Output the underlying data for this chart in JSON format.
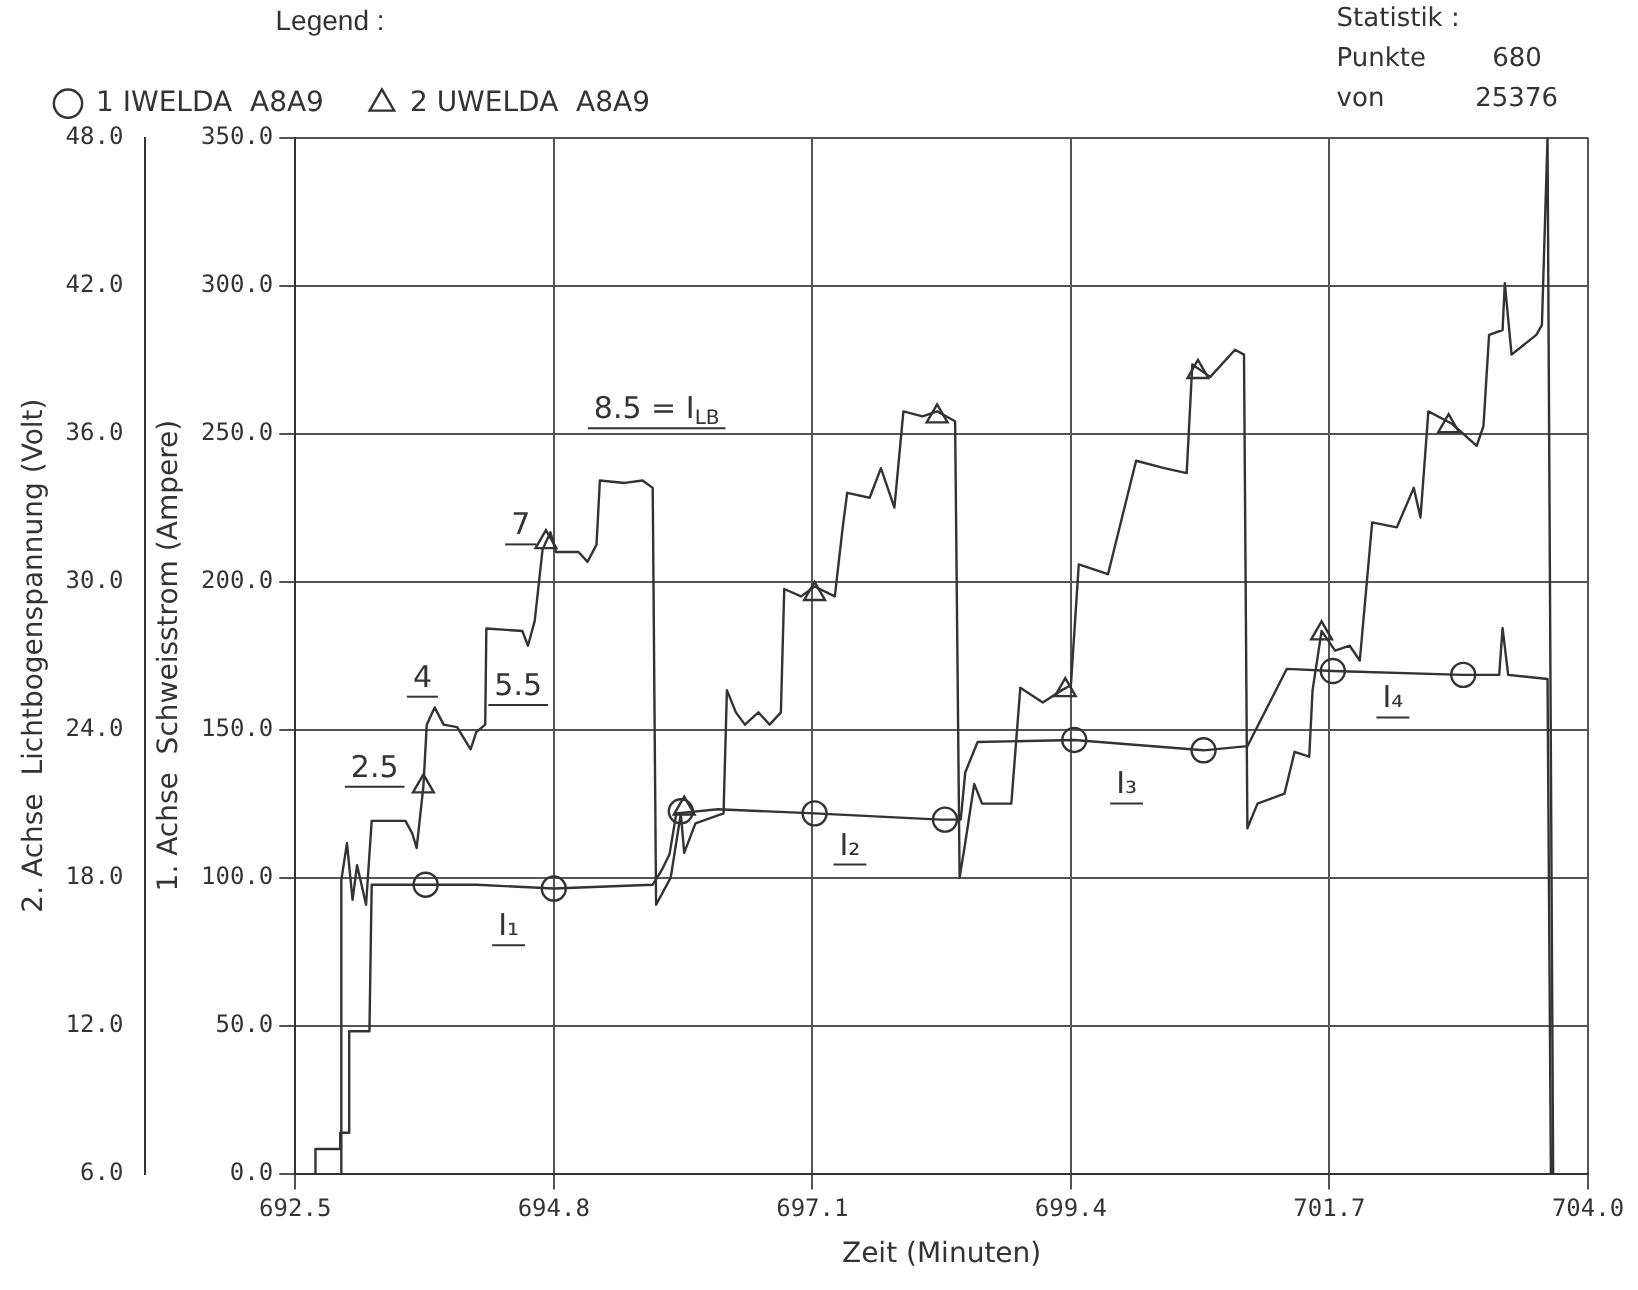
{
  "chart_data": {
    "type": "line",
    "xlabel": "Zeit (Minuten)",
    "ylabel": "1. Achse  Schweisstrom (Ampere)",
    "y2label": "2. Achse  Lichtbogenspannung (Volt)",
    "legend_title": "Legend :",
    "xlim": [
      692.5,
      704.0
    ],
    "xticks": [
      692.5,
      694.8,
      697.1,
      699.4,
      701.7,
      {
        "value": 704.0,
        "label": "704.0"
      }
    ],
    "ylim": [
      0,
      350
    ],
    "yticks": [
      {
        "value": 0,
        "label": "0.0"
      },
      {
        "value": 50,
        "label": "50.0"
      },
      {
        "value": 100,
        "label": "100.0"
      },
      {
        "value": 150,
        "label": "150.0"
      },
      {
        "value": 200,
        "label": "200.0"
      },
      {
        "value": 250,
        "label": "250.0"
      },
      {
        "value": 300,
        "label": "300.0"
      },
      {
        "value": 350,
        "label": "350.0"
      }
    ],
    "y2lim": [
      6,
      48
    ],
    "y2ticks": [
      {
        "value": 6,
        "label": "6.0"
      },
      {
        "value": 12,
        "label": "12.0"
      },
      {
        "value": 18,
        "label": "18.0"
      },
      {
        "value": 24,
        "label": "24.0"
      },
      {
        "value": 30,
        "label": "30.0"
      },
      {
        "value": 36,
        "label": "36.0"
      },
      {
        "value": 42,
        "label": "42.0"
      },
      {
        "value": 48,
        "label": "48.0"
      }
    ],
    "grid": true,
    "legend": "top left",
    "series": [
      {
        "type": "line",
        "color": "#333333",
        "marker": "none",
        "x": [
          692.67,
          692.68,
          692.9,
          692.9,
          692.98,
          692.98,
          693.16,
          693.18,
          694.11,
          694.8,
          695.68,
          695.76,
          695.83,
          695.89,
          696.26,
          697.12,
          698.24,
          698.42,
          698.46,
          698.57,
          699.43,
          700.58,
          700.97,
          701.32,
          701.73,
          702.89,
          703.21,
          703.24,
          703.29,
          703.64,
          703.67
        ],
        "values": [
          0,
          8.3,
          8.3,
          13.8,
          13.8,
          48.1,
          48.1,
          97.6,
          97.6,
          96.3,
          97.6,
          102.5,
          108.0,
          121.7,
          123.1,
          121.7,
          119.6,
          119.6,
          135.5,
          145.8,
          146.5,
          143.0,
          144.4,
          170.5,
          169.8,
          168.5,
          168.5,
          184.3,
          168.5,
          167.1,
          0
        ]
      },
      {
        "type": "scatter",
        "name": "1 IWELDA  A8A9",
        "color": "#333333",
        "marker": "circle",
        "x": [
          693.66,
          694.8,
          695.93,
          697.12,
          698.28,
          699.43,
          700.58,
          701.73,
          702.89
        ],
        "values": [
          97.6,
          96.3,
          122.4,
          121.7,
          119.6,
          146.5,
          143.0,
          169.8,
          168.5
        ]
      },
      {
        "type": "line",
        "axis": "y2",
        "color": "#333333",
        "marker": "none",
        "x": [
          692.9,
          692.91,
          692.96,
          693.01,
          693.05,
          693.13,
          693.18,
          693.48,
          693.54,
          693.58,
          693.64,
          693.67,
          693.74,
          693.82,
          693.94,
          694.06,
          694.11,
          694.19,
          694.2,
          694.52,
          694.57,
          694.63,
          694.7,
          694.77,
          694.82,
          695.02,
          695.1,
          695.18,
          695.21,
          695.43,
          695.59,
          695.68,
          695.71,
          695.84,
          695.93,
          695.96,
          696.06,
          696.31,
          696.34,
          696.42,
          696.5,
          696.62,
          696.72,
          696.82,
          696.85,
          697.0,
          697.12,
          697.3,
          697.37,
          697.41,
          697.61,
          697.71,
          697.83,
          697.91,
          698.08,
          698.21,
          698.37,
          698.41,
          698.46,
          698.54,
          698.61,
          698.87,
          698.95,
          699.15,
          699.32,
          699.4,
          699.47,
          699.73,
          699.98,
          700.23,
          700.43,
          700.48,
          700.64,
          700.86,
          700.94,
          700.97,
          701.06,
          701.3,
          701.39,
          701.52,
          701.55,
          701.63,
          701.75,
          701.88,
          701.97,
          702.08,
          702.3,
          702.45,
          702.51,
          702.58,
          702.79,
          703.01,
          703.07,
          703.12,
          703.24,
          703.26,
          703.32,
          703.54,
          703.59,
          703.64,
          703.69
        ],
        "values": [
          6.0,
          17.9,
          19.4,
          17.1,
          18.5,
          16.9,
          20.3,
          20.3,
          19.8,
          19.2,
          21.7,
          24.2,
          24.9,
          24.2,
          24.1,
          23.2,
          23.9,
          24.2,
          28.1,
          28.0,
          27.4,
          28.4,
          31.3,
          32.0,
          31.2,
          31.2,
          30.8,
          31.5,
          34.1,
          34.0,
          34.1,
          33.8,
          16.9,
          18.0,
          20.6,
          19.0,
          20.2,
          20.6,
          25.6,
          24.7,
          24.2,
          24.7,
          24.2,
          24.7,
          29.7,
          29.4,
          29.8,
          29.4,
          32.2,
          33.6,
          33.4,
          34.6,
          33.0,
          36.9,
          36.7,
          36.9,
          36.5,
          18.0,
          19.4,
          21.8,
          21.0,
          21.0,
          25.7,
          25.1,
          25.6,
          25.8,
          30.7,
          30.3,
          34.9,
          34.6,
          34.4,
          38.8,
          38.3,
          39.4,
          39.2,
          20.0,
          21.0,
          21.4,
          23.1,
          22.9,
          25.6,
          28.0,
          27.2,
          27.4,
          26.8,
          32.4,
          32.2,
          33.8,
          32.6,
          36.9,
          36.4,
          35.5,
          36.3,
          40.0,
          40.2,
          42.1,
          39.2,
          40.0,
          40.4,
          48.0,
          6.0
        ]
      },
      {
        "type": "scatter",
        "axis": "y2",
        "name": "2 UWELDA  A8A9",
        "color": "#333333",
        "marker": "triangle",
        "x": [
          693.64,
          694.73,
          695.96,
          697.12,
          698.21,
          699.35,
          700.53,
          701.63,
          702.76
        ],
        "values": [
          21.7,
          31.6,
          20.8,
          29.5,
          36.7,
          25.6,
          38.5,
          27.9,
          36.3
        ]
      }
    ],
    "annotations": [
      "2.5",
      "4",
      "5.5",
      "7",
      "8.5 = I$_{LB}$",
      "I₁",
      "I₂",
      "I₃",
      "I₄",
      "Statistik :",
      "Punkte        680",
      "von           25376"
    ]
  }
}
